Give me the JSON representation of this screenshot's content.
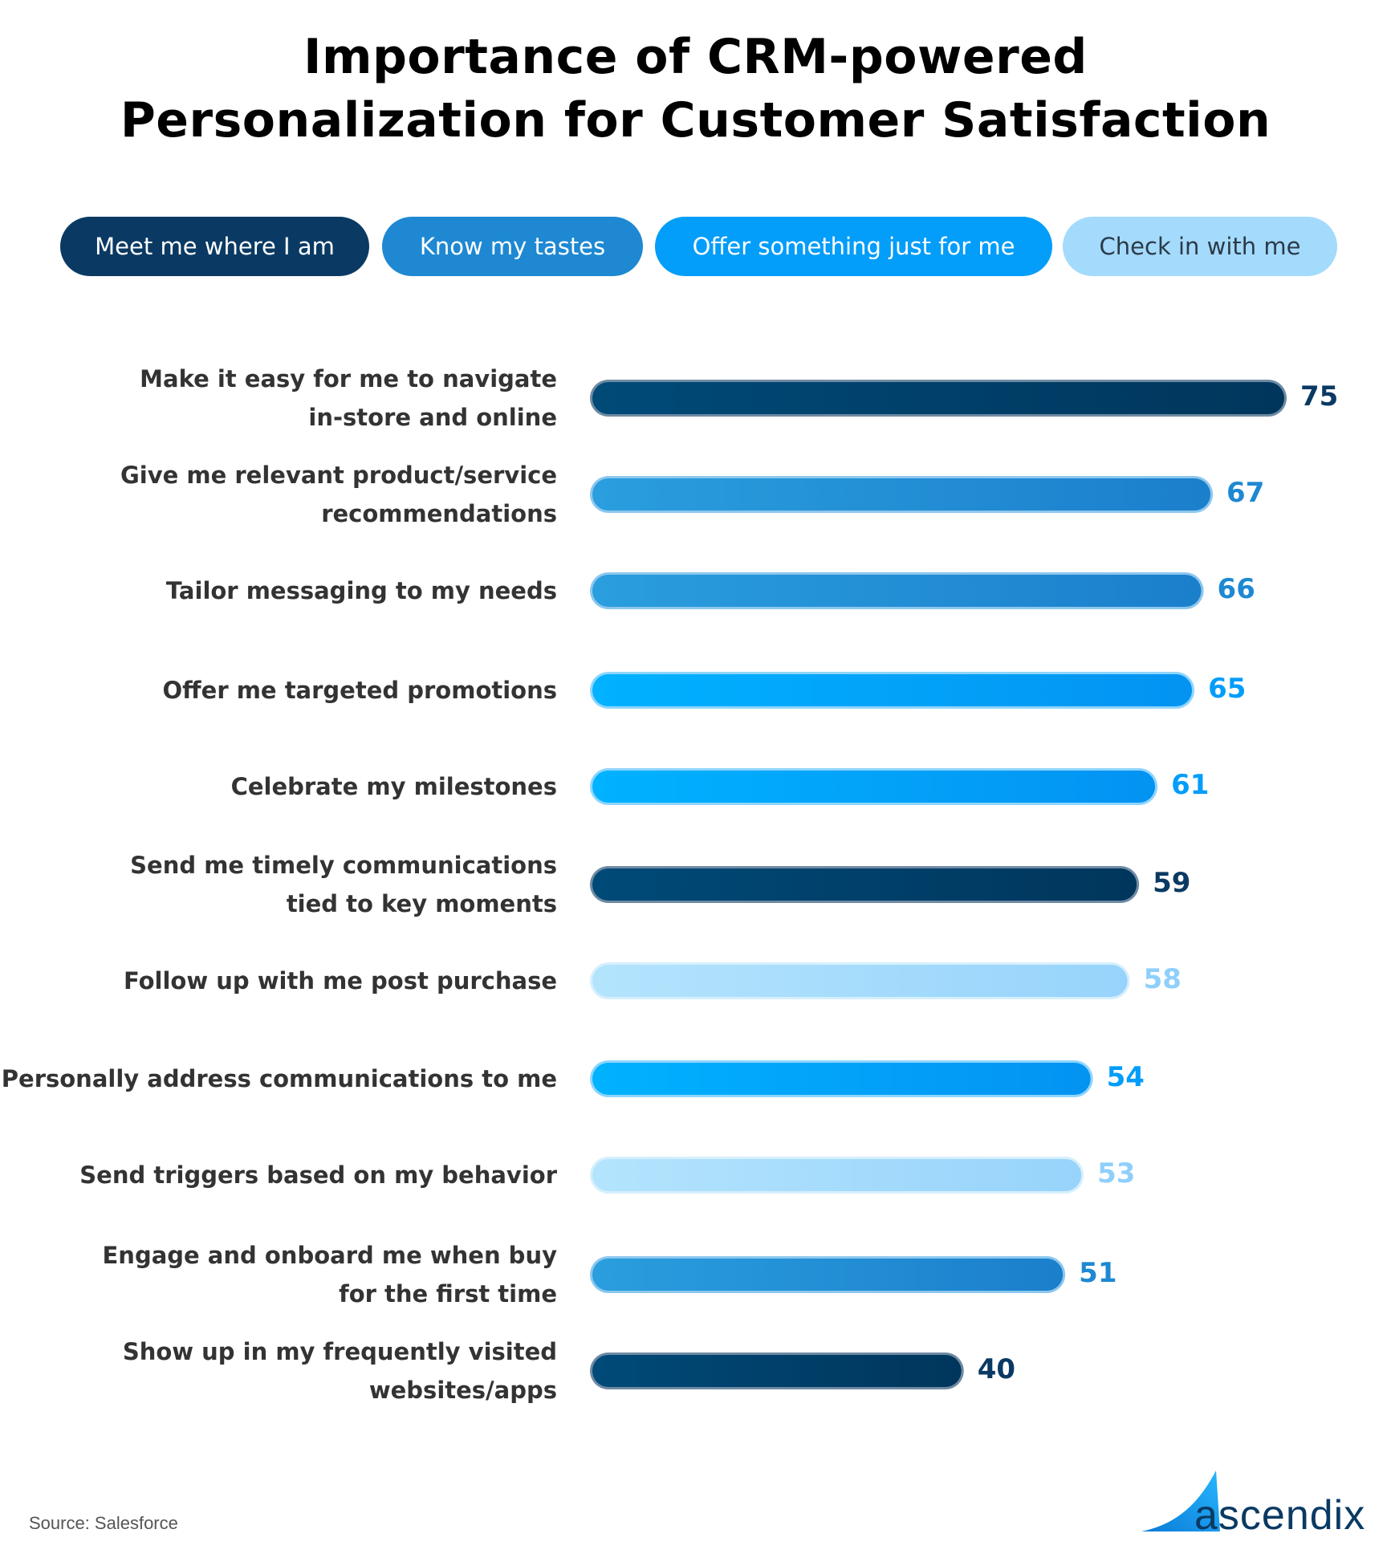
{
  "title_line1": "Importance of CRM-powered",
  "title_line2": "Personalization for Customer Satisfaction",
  "legend": [
    {
      "label": "Meet me where I am",
      "bg": "#0a3a63",
      "fg": "#ffffff"
    },
    {
      "label": "Know my tastes",
      "bg": "#1e88d2",
      "fg": "#ffffff"
    },
    {
      "label": "Offer something just for me",
      "bg": "#039dfa",
      "fg": "#ffffff"
    },
    {
      "label": "Check in with me",
      "bg": "#a4dafc",
      "fg": "#2b3a48"
    }
  ],
  "chart_data": {
    "type": "bar",
    "orientation": "horizontal",
    "title": "Importance of CRM-powered Personalization for Customer Satisfaction",
    "categories": [
      [
        "Make it easy for me to navigate",
        "in-store and online"
      ],
      [
        "Give me relevant product/service",
        "recommendations"
      ],
      [
        "Tailor messaging to my needs"
      ],
      [
        "Offer me targeted promotions"
      ],
      [
        "Celebrate my milestones"
      ],
      [
        "Send me timely communications",
        "tied to key moments"
      ],
      [
        "Follow up with me post purchase"
      ],
      [
        "Personally address communications to me"
      ],
      [
        "Send triggers based on my behavior"
      ],
      [
        "Engage and onboard me when buy",
        "for the first time"
      ],
      [
        "Show up in my frequently visited",
        "websites/apps"
      ]
    ],
    "values": [
      75,
      67,
      66,
      65,
      61,
      59,
      58,
      54,
      53,
      51,
      40
    ],
    "groups": [
      0,
      1,
      1,
      2,
      2,
      0,
      3,
      2,
      3,
      1,
      0
    ],
    "group_colors": [
      "#0a3a63",
      "#1e88d2",
      "#039dfa",
      "#a4dafc"
    ],
    "value_label_colors": [
      "#0a3a63",
      "#1e88d2",
      "#039dfa",
      "#8fd0fb"
    ],
    "xlim": [
      0,
      75
    ],
    "legend_position": "top",
    "grid": false
  },
  "source": "Source: Salesforce",
  "logo_text": "ascendix"
}
